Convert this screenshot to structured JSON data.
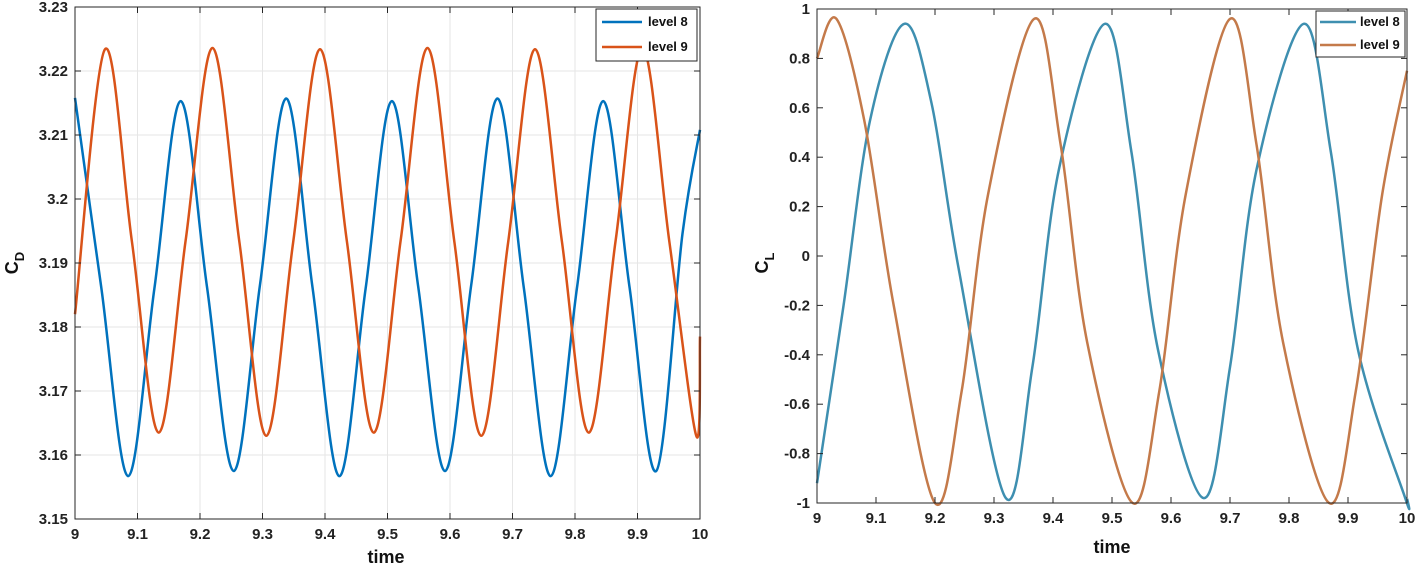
{
  "chart_data": [
    {
      "type": "line",
      "xlabel": "time",
      "ylabel_main": "C",
      "ylabel_sub": "D",
      "xlim": [
        9,
        10
      ],
      "ylim": [
        3.15,
        3.23
      ],
      "xticks": [
        "9",
        "9.1",
        "9.2",
        "9.3",
        "9.4",
        "9.5",
        "9.6",
        "9.7",
        "9.8",
        "9.9",
        "10"
      ],
      "yticks": [
        "3.15",
        "3.16",
        "3.17",
        "3.18",
        "3.19",
        "3.2",
        "3.21",
        "3.22",
        "3.23"
      ],
      "grid": true,
      "legend_position": "top-right",
      "series": [
        {
          "name": "level 8",
          "color": "#0072BD",
          "x": [
            9.0,
            9.042,
            9.085,
            9.127,
            9.169,
            9.211,
            9.254,
            9.296,
            9.338,
            9.38,
            9.423,
            9.465,
            9.507,
            9.549,
            9.592,
            9.634,
            9.676,
            9.718,
            9.761,
            9.803,
            9.845,
            9.887,
            9.93,
            9.972,
            10.0
          ],
          "y": [
            3.2158,
            3.1862,
            3.1567,
            3.186,
            3.2153,
            3.1864,
            3.1575,
            3.1866,
            3.2157,
            3.1862,
            3.1567,
            3.186,
            3.2153,
            3.1864,
            3.1575,
            3.1866,
            3.2157,
            3.1862,
            3.1567,
            3.186,
            3.2153,
            3.1864,
            3.1575,
            3.1946,
            3.2108
          ]
        },
        {
          "name": "level 9",
          "color": "#D95319",
          "x": [
            9.0,
            9.048,
            9.091,
            9.134,
            9.177,
            9.22,
            9.263,
            9.306,
            9.349,
            9.392,
            9.435,
            9.478,
            9.521,
            9.564,
            9.607,
            9.65,
            9.693,
            9.736,
            9.779,
            9.822,
            9.865,
            9.908,
            9.951,
            9.994,
            10.0
          ],
          "y": [
            3.182,
            3.2234,
            3.1934,
            3.1635,
            3.1935,
            3.2236,
            3.1933,
            3.163,
            3.1932,
            3.2234,
            3.1934,
            3.1635,
            3.1935,
            3.2236,
            3.1933,
            3.163,
            3.1932,
            3.2234,
            3.1934,
            3.1635,
            3.1935,
            3.2236,
            3.1933,
            3.163,
            3.1785
          ]
        }
      ]
    },
    {
      "type": "line",
      "xlabel": "time",
      "ylabel_main": "C",
      "ylabel_sub": "L",
      "xlim": [
        9,
        10
      ],
      "ylim": [
        -1,
        1
      ],
      "xticks": [
        "9",
        "9.1",
        "9.2",
        "9.3",
        "9.4",
        "9.5",
        "9.6",
        "9.7",
        "9.8",
        "9.9",
        "10"
      ],
      "yticks": [
        "-1",
        "-0.8",
        "-0.6",
        "-0.4",
        "-0.2",
        "0",
        "0.2",
        "0.4",
        "0.6",
        "0.8",
        "1"
      ],
      "grid": false,
      "legend_position": "top-right",
      "series": [
        {
          "name": "level 8",
          "color": "#3E8FB0",
          "x": [
            9.0,
            9.045,
            9.09,
            9.148,
            9.194,
            9.24,
            9.32,
            9.365,
            9.41,
            9.488,
            9.533,
            9.578,
            9.655,
            9.7,
            9.745,
            9.825,
            9.871,
            9.917,
            9.997,
            10.0
          ],
          "y": [
            -0.92,
            -0.2,
            0.55,
            0.94,
            0.62,
            -0.05,
            -0.98,
            -0.45,
            0.35,
            0.94,
            0.42,
            -0.38,
            -0.98,
            -0.45,
            0.35,
            0.94,
            0.42,
            -0.38,
            -0.98,
            -0.98
          ]
        },
        {
          "name": "level 9",
          "color": "#C47A4A",
          "x": [
            9.0,
            9.033,
            9.08,
            9.13,
            9.2,
            9.245,
            9.29,
            9.368,
            9.413,
            9.458,
            9.535,
            9.58,
            9.625,
            9.7,
            9.745,
            9.79,
            9.868,
            9.913,
            9.958,
            10.0
          ],
          "y": [
            0.8,
            0.96,
            0.55,
            -0.2,
            -1.0,
            -0.55,
            0.25,
            0.96,
            0.45,
            -0.35,
            -1.0,
            -0.55,
            0.25,
            0.96,
            0.45,
            -0.35,
            -1.0,
            -0.55,
            0.25,
            0.75
          ]
        }
      ]
    }
  ]
}
